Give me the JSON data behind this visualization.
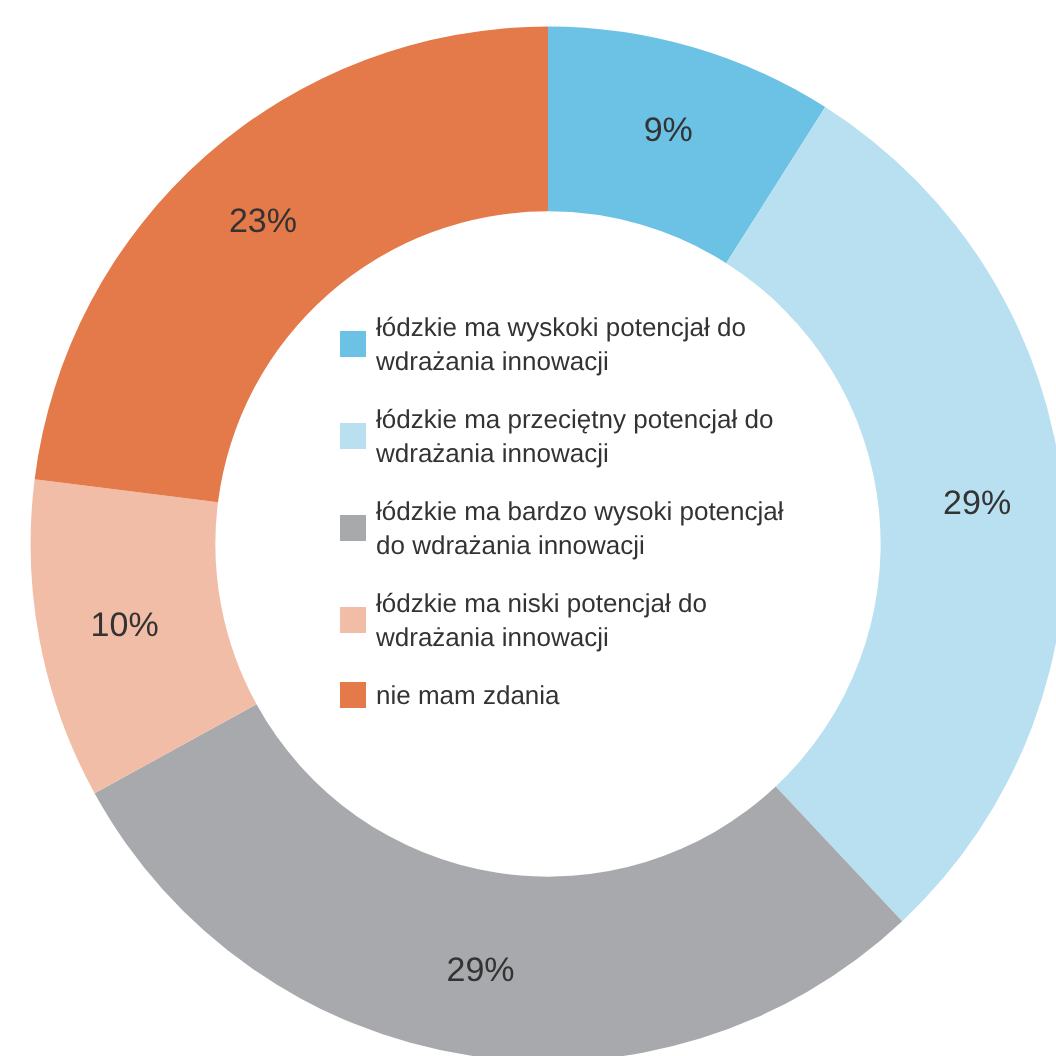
{
  "chart_data": {
    "type": "donut",
    "categories": [
      "łódzkie ma wyskoki potencjał do wdrażania innowacji",
      "łódzkie ma przeciętny potencjał do wdrażania innowacji",
      "łódzkie ma bardzo wysoki potencjał do wdrażania innowacji",
      "łódzkie ma niski potencjał do wdrażania innowacji",
      "nie mam zdania"
    ],
    "values": [
      9,
      29,
      29,
      10,
      23
    ],
    "colors": [
      "#6cc2e4",
      "#b8e0f0",
      "#a8a9ac",
      "#f2bda6",
      "#e4794a"
    ],
    "value_labels": [
      "9%",
      "29%",
      "29%",
      "10%",
      "23%"
    ],
    "legend": "center"
  }
}
